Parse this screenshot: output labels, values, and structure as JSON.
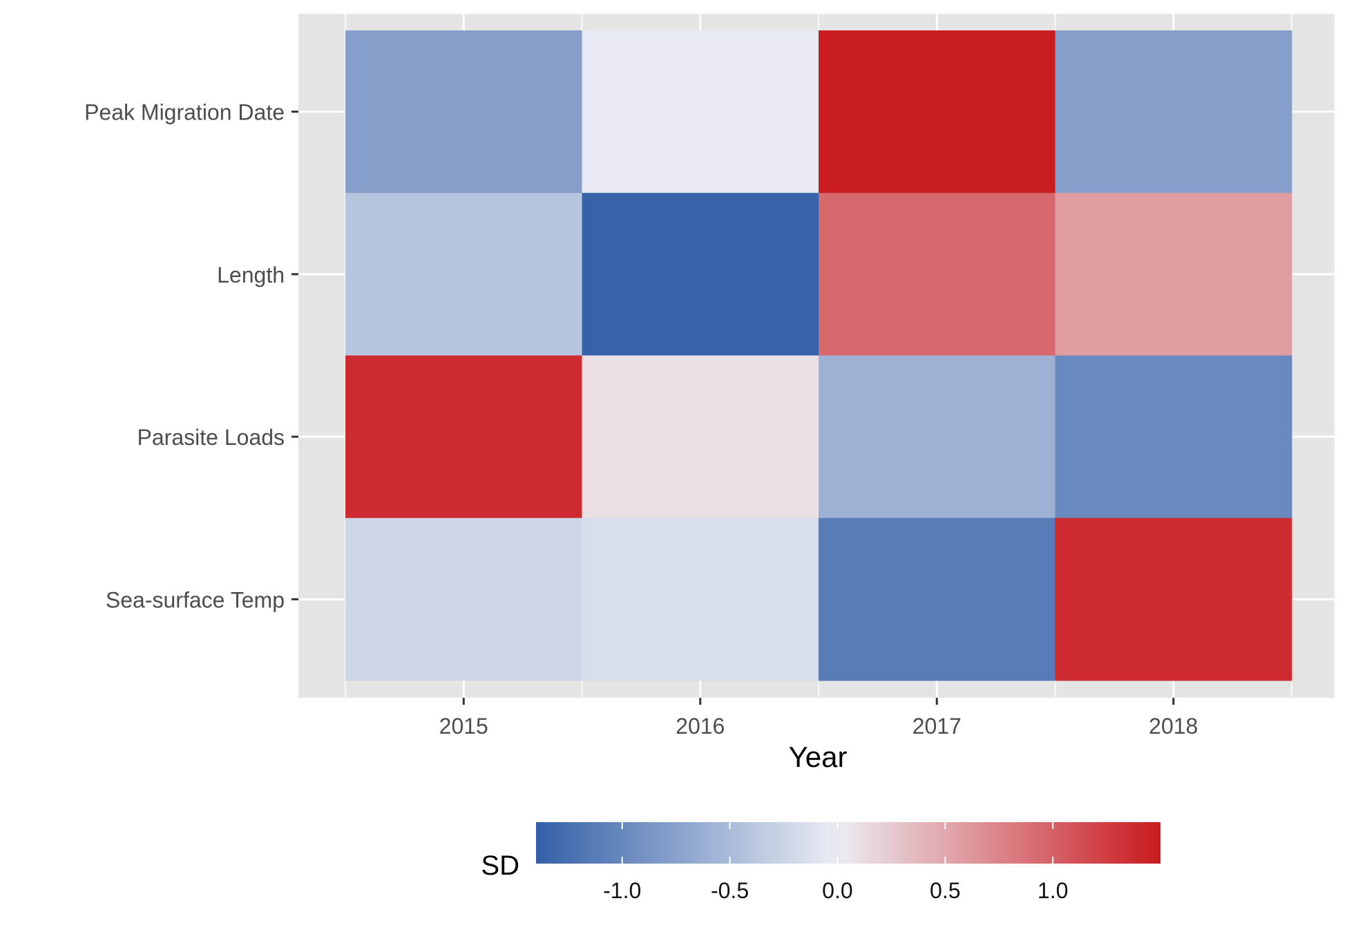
{
  "chart_data": {
    "type": "heatmap",
    "title": "",
    "xlabel": "Year",
    "ylabel": "",
    "x_categories": [
      "2015",
      "2016",
      "2017",
      "2018"
    ],
    "y_categories": [
      "Peak Migration Date",
      "Length",
      "Parasite Loads",
      "Sea-surface Temp"
    ],
    "values": [
      [
        -0.78,
        -0.04,
        1.48,
        -0.78
      ],
      [
        -0.4,
        -1.38,
        0.95,
        0.58
      ],
      [
        1.38,
        0.1,
        -0.6,
        -1.0
      ],
      [
        -0.24,
        -0.16,
        -1.12,
        1.38
      ]
    ],
    "grid": true,
    "legend": {
      "title": "SD",
      "position": "bottom",
      "range": [
        -1.4,
        1.5
      ],
      "ticks": [
        -1.0,
        -0.5,
        0.0,
        0.5,
        1.0
      ],
      "tick_labels": [
        "-1.0",
        "-0.5",
        "0.0",
        "0.5",
        "1.0"
      ],
      "colors": {
        "low": "#3360a8",
        "mid": "#eceef4",
        "high": "#ca1a1e"
      }
    },
    "panel_background": "#e5e5e5"
  }
}
